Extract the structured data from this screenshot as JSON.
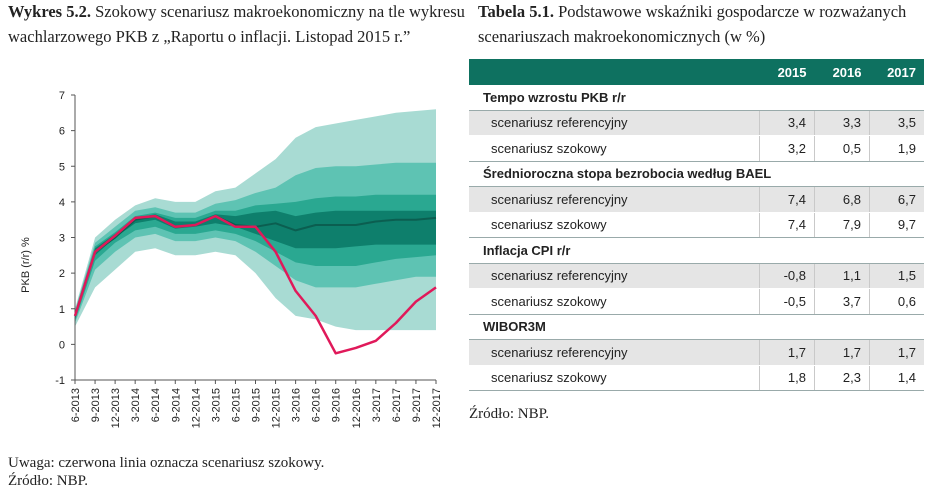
{
  "figure": {
    "number": "Wykres 5.2.",
    "title": "Szokowy scenariusz makroekonomiczny na tle wykresu wachlarzowego PKB z „Raportu o inflacji. Listopad 2015 r.”",
    "note": "Uwaga: czerwona linia oznacza scenariusz szokowy.",
    "source": "Źródło: NBP."
  },
  "table": {
    "number": "Tabela 5.1.",
    "title": "Podstawowe wskaźniki gospodarcze w rozważanych scenariuszach makroekonomicznych (w %)",
    "columns": [
      "2015",
      "2016",
      "2017"
    ],
    "sections": [
      {
        "name": "Tempo wzrostu PKB r/r",
        "rows": [
          {
            "label": "scenariusz referencyjny",
            "values": [
              "3,4",
              "3,3",
              "3,5"
            ]
          },
          {
            "label": "scenariusz szokowy",
            "values": [
              "3,2",
              "0,5",
              "1,9"
            ]
          }
        ]
      },
      {
        "name": "Średnioroczna stopa bezrobocia według BAEL",
        "rows": [
          {
            "label": "scenariusz referencyjny",
            "values": [
              "7,4",
              "6,8",
              "6,7"
            ]
          },
          {
            "label": "scenariusz szokowy",
            "values": [
              "7,4",
              "7,9",
              "9,7"
            ]
          }
        ]
      },
      {
        "name": "Inflacja CPI r/r",
        "rows": [
          {
            "label": "scenariusz referencyjny",
            "values": [
              "-0,8",
              "1,1",
              "1,5"
            ]
          },
          {
            "label": "scenariusz szokowy",
            "values": [
              "-0,5",
              "3,7",
              "0,6"
            ]
          }
        ]
      },
      {
        "name": "WIBOR3M",
        "rows": [
          {
            "label": "scenariusz referencyjny",
            "values": [
              "1,7",
              "1,7",
              "1,7"
            ]
          },
          {
            "label": "scenariusz szokowy",
            "values": [
              "1,8",
              "2,3",
              "1,4"
            ]
          }
        ]
      }
    ],
    "source": "Źródło: NBP."
  },
  "chart_data": {
    "type": "area",
    "ylabel": "PKB (r/r) %",
    "ylim": [
      -1,
      7
    ],
    "yticks": [
      -1,
      0,
      1,
      2,
      3,
      4,
      5,
      6,
      7
    ],
    "categories": [
      "6-2013",
      "9-2013",
      "12-2013",
      "3-2014",
      "6-2014",
      "9-2014",
      "12-2014",
      "3-2015",
      "6-2015",
      "9-2015",
      "12-2015",
      "3-2016",
      "6-2016",
      "9-2016",
      "12-2016",
      "3-2017",
      "6-2017",
      "9-2017",
      "12-2017"
    ],
    "fan_colors": [
      "#a8dbd3",
      "#5ec3b3",
      "#2aa891",
      "#0e7f6c"
    ],
    "central_color": "#0b5e50",
    "shock_color": "#e0195a",
    "fan_bands": [
      {
        "lower": [
          0.5,
          1.6,
          2.1,
          2.6,
          2.7,
          2.5,
          2.5,
          2.6,
          2.5,
          2.0,
          1.3,
          0.8,
          0.7,
          0.5,
          0.4,
          0.4,
          0.4,
          0.4,
          0.4
        ],
        "upper": [
          1.0,
          3.0,
          3.5,
          3.9,
          4.1,
          4.0,
          4.0,
          4.3,
          4.4,
          4.8,
          5.2,
          5.8,
          6.1,
          6.2,
          6.3,
          6.4,
          6.5,
          6.55,
          6.6
        ]
      },
      {
        "lower": [
          0.6,
          2.1,
          2.6,
          3.0,
          3.1,
          2.9,
          2.9,
          3.0,
          2.9,
          2.6,
          2.2,
          1.8,
          1.6,
          1.6,
          1.6,
          1.7,
          1.8,
          1.9,
          1.9
        ],
        "upper": [
          0.95,
          2.85,
          3.3,
          3.75,
          3.85,
          3.7,
          3.7,
          3.95,
          4.05,
          4.25,
          4.4,
          4.75,
          4.95,
          5.0,
          5.0,
          5.05,
          5.1,
          5.1,
          5.1
        ]
      },
      {
        "lower": [
          0.65,
          2.35,
          2.85,
          3.2,
          3.3,
          3.1,
          3.1,
          3.2,
          3.1,
          2.9,
          2.6,
          2.3,
          2.2,
          2.2,
          2.2,
          2.3,
          2.4,
          2.45,
          2.5
        ],
        "upper": [
          0.9,
          2.75,
          3.15,
          3.6,
          3.7,
          3.55,
          3.55,
          3.75,
          3.75,
          3.9,
          3.95,
          4.0,
          4.1,
          4.15,
          4.15,
          4.2,
          4.2,
          4.2,
          4.2
        ]
      },
      {
        "lower": [
          0.7,
          2.5,
          3.0,
          3.4,
          3.5,
          3.25,
          3.3,
          3.4,
          3.3,
          3.1,
          2.9,
          2.7,
          2.7,
          2.7,
          2.75,
          2.8,
          2.8,
          2.8,
          2.8
        ],
        "upper": [
          0.85,
          2.7,
          3.1,
          3.55,
          3.65,
          3.45,
          3.45,
          3.65,
          3.6,
          3.7,
          3.75,
          3.6,
          3.7,
          3.75,
          3.75,
          3.75,
          3.75,
          3.75,
          3.75
        ]
      }
    ],
    "series": [
      {
        "values": [
          0.8,
          2.6,
          3.0,
          3.5,
          3.6,
          3.3,
          3.35,
          3.6,
          3.35,
          3.3,
          3.4,
          3.2,
          3.35,
          3.35,
          3.35,
          3.45,
          3.5,
          3.5,
          3.55
        ]
      },
      {
        "values": [
          0.8,
          2.6,
          3.05,
          3.55,
          3.6,
          3.3,
          3.35,
          3.6,
          3.3,
          3.3,
          2.6,
          1.5,
          0.8,
          -0.25,
          -0.1,
          0.1,
          0.6,
          1.2,
          1.6
        ]
      }
    ]
  }
}
